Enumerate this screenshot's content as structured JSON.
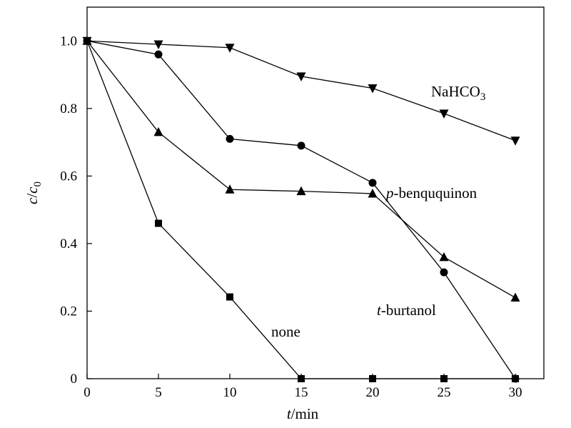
{
  "chart_data": {
    "type": "line",
    "xlabel": {
      "italic": "t",
      "rest": "/min"
    },
    "ylabel": {
      "italic1": "c",
      "mid": "/",
      "italic2": "c",
      "sub": "0"
    },
    "xlim": [
      0,
      32
    ],
    "ylim": [
      0,
      1.1
    ],
    "xticks": [
      0,
      5,
      10,
      15,
      20,
      25,
      30
    ],
    "yticks": [
      0,
      0.2,
      0.4,
      0.6,
      0.8,
      1.0
    ],
    "ytick_labels": [
      "0",
      "0.2",
      "0.4",
      "0.6",
      "0.8",
      "1.0"
    ],
    "grid": false,
    "series": [
      {
        "name": "NaHCO3",
        "label": {
          "text": "NaHCO",
          "sub": "3"
        },
        "marker": "triangle-down",
        "x": [
          0,
          5,
          10,
          15,
          20,
          25,
          30
        ],
        "y": [
          1.0,
          0.99,
          0.98,
          0.895,
          0.86,
          0.785,
          0.705
        ]
      },
      {
        "name": "p-benququinon",
        "label": {
          "italic": "p",
          "text": "-benququinon"
        },
        "marker": "circle",
        "x": [
          0,
          5,
          10,
          15,
          20,
          25,
          30
        ],
        "y": [
          1.0,
          0.96,
          0.71,
          0.69,
          0.58,
          0.315,
          0.0
        ]
      },
      {
        "name": "t-burtanol",
        "label": {
          "italic": "t",
          "text": "-burtanol"
        },
        "marker": "triangle-up",
        "x": [
          0,
          5,
          10,
          15,
          20,
          25,
          30
        ],
        "y": [
          1.0,
          0.73,
          0.56,
          0.555,
          0.548,
          0.36,
          0.24
        ]
      },
      {
        "name": "none",
        "label": {
          "text": "none"
        },
        "marker": "square",
        "x": [
          0,
          5,
          10,
          15,
          20,
          25,
          30
        ],
        "y": [
          1.0,
          0.46,
          0.242,
          0.0,
          0.0,
          0.0,
          0.0
        ]
      }
    ]
  }
}
